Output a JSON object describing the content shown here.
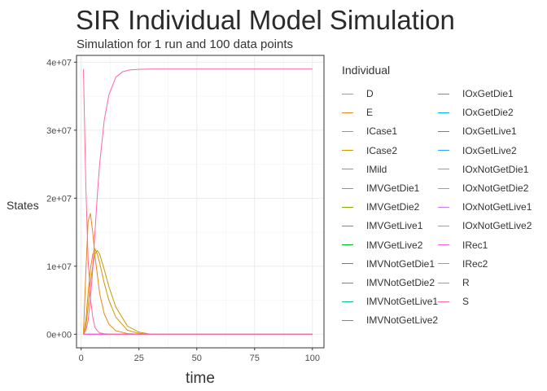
{
  "title": "SIR Individual Model Simulation",
  "subtitle": "Simulation for 1 run and 100 data points",
  "chart_data": {
    "type": "line",
    "xlabel": "time",
    "ylabel": "States",
    "xlim": [
      -2,
      105
    ],
    "ylim": [
      -2000000,
      41000000
    ],
    "xticks": [
      0,
      25,
      50,
      75,
      100
    ],
    "xtick_labels": [
      "0",
      "25",
      "50",
      "75",
      "100"
    ],
    "yticks": [
      0,
      10000000,
      20000000,
      30000000,
      40000000
    ],
    "ytick_labels": [
      "0e+00",
      "1e+07",
      "2e+07",
      "3e+07",
      "4e+07"
    ],
    "grid": true,
    "legend_position": "right",
    "legend_title": "Individual",
    "series": [
      {
        "name": "D",
        "color": "#F8766D",
        "x": [
          1,
          100
        ],
        "y": [
          0,
          0
        ]
      },
      {
        "name": "E",
        "color": "#E7861B",
        "x": [
          1,
          2,
          3,
          4,
          5,
          6,
          8,
          10,
          12,
          15,
          20,
          25,
          30,
          100
        ],
        "y": [
          0,
          9000000,
          16500000,
          17800000,
          15000000,
          11500000,
          6000000,
          3000000,
          1500000,
          500000,
          100000,
          20000,
          0,
          0
        ]
      },
      {
        "name": "ICase1",
        "color": "#D89000",
        "x": [
          1,
          2,
          3,
          4,
          5,
          6,
          7,
          8,
          10,
          12,
          15,
          20,
          25,
          30,
          100
        ],
        "y": [
          0,
          2000000,
          6000000,
          9500000,
          11700000,
          12500000,
          11800000,
          10500000,
          7500000,
          5000000,
          2500000,
          600000,
          120000,
          0,
          0
        ]
      },
      {
        "name": "ICase2",
        "color": "#C49A00",
        "x": [
          1,
          2,
          3,
          4,
          5,
          6,
          7,
          8,
          10,
          12,
          15,
          20,
          25,
          30,
          100
        ],
        "y": [
          0,
          1000000,
          4000000,
          7500000,
          10000000,
          11800000,
          12300000,
          11800000,
          9500000,
          7000000,
          4000000,
          1200000,
          300000,
          0,
          0
        ]
      },
      {
        "name": "IMild",
        "color": "#A3A500",
        "x": [
          1,
          100
        ],
        "y": [
          0,
          0
        ]
      },
      {
        "name": "IMVGetDie1",
        "color": "#9AA800",
        "x": [
          1,
          100
        ],
        "y": [
          0,
          0
        ]
      },
      {
        "name": "IMVGetDie2",
        "color": "#81AD00",
        "x": [
          1,
          100
        ],
        "y": [
          0,
          0
        ]
      },
      {
        "name": "IMVGetLive1",
        "color": "#5BB300",
        "x": [
          1,
          100
        ],
        "y": [
          0,
          0
        ]
      },
      {
        "name": "IMVGetLive2",
        "color": "#00B81F",
        "x": [
          1,
          100
        ],
        "y": [
          0,
          0
        ]
      },
      {
        "name": "IMVNotGetDie1",
        "color": "#00BB4E",
        "x": [
          1,
          100
        ],
        "y": [
          0,
          0
        ]
      },
      {
        "name": "IMVNotGetDie2",
        "color": "#00BF7D",
        "x": [
          1,
          100
        ],
        "y": [
          0,
          0
        ]
      },
      {
        "name": "IMVNotGetLive1",
        "color": "#00C0A5",
        "x": [
          1,
          100
        ],
        "y": [
          0,
          0
        ]
      },
      {
        "name": "IMVNotGetLive2",
        "color": "#00BFC4",
        "x": [
          1,
          100
        ],
        "y": [
          0,
          0
        ]
      },
      {
        "name": "IOxGetDie1",
        "color": "#00BBDB",
        "x": [
          1,
          100
        ],
        "y": [
          0,
          0
        ]
      },
      {
        "name": "IOxGetDie2",
        "color": "#00B4EF",
        "x": [
          1,
          100
        ],
        "y": [
          0,
          0
        ]
      },
      {
        "name": "IOxGetLive1",
        "color": "#00A9FF",
        "x": [
          1,
          100
        ],
        "y": [
          0,
          0
        ]
      },
      {
        "name": "IOxGetLive2",
        "color": "#35A2FF",
        "x": [
          1,
          100
        ],
        "y": [
          0,
          0
        ]
      },
      {
        "name": "IOxNotGetDie1",
        "color": "#7997FF",
        "x": [
          1,
          100
        ],
        "y": [
          0,
          0
        ]
      },
      {
        "name": "IOxNotGetDie2",
        "color": "#A58AFF",
        "x": [
          1,
          100
        ],
        "y": [
          0,
          0
        ]
      },
      {
        "name": "IOxNotGetLive1",
        "color": "#C77CFF",
        "x": [
          1,
          100
        ],
        "y": [
          0,
          0
        ]
      },
      {
        "name": "IOxNotGetLive2",
        "color": "#DF70F8",
        "x": [
          1,
          100
        ],
        "y": [
          0,
          0
        ]
      },
      {
        "name": "IRec1",
        "color": "#F066EA",
        "x": [
          1,
          100
        ],
        "y": [
          0,
          0
        ]
      },
      {
        "name": "IRec2",
        "color": "#FB61D7",
        "x": [
          1,
          100
        ],
        "y": [
          0,
          0
        ]
      },
      {
        "name": "R",
        "color": "#FF65AC",
        "x": [
          1,
          2,
          3,
          4,
          5,
          6,
          7,
          8,
          10,
          12,
          15,
          18,
          21,
          25,
          30,
          100
        ],
        "y": [
          0,
          500000,
          2000000,
          5000000,
          9500000,
          15000000,
          20500000,
          25000000,
          31500000,
          35200000,
          37800000,
          38600000,
          38850000,
          38950000,
          39000000,
          39000000
        ]
      },
      {
        "name": "S",
        "color": "#FF6C91",
        "x": [
          1,
          2,
          3,
          4,
          5,
          6,
          7,
          8,
          10,
          12,
          15,
          20,
          100
        ],
        "y": [
          39000000,
          22000000,
          11000000,
          5500000,
          2500000,
          1000000,
          500000,
          200000,
          80000,
          20000,
          0,
          0,
          0
        ]
      }
    ]
  }
}
